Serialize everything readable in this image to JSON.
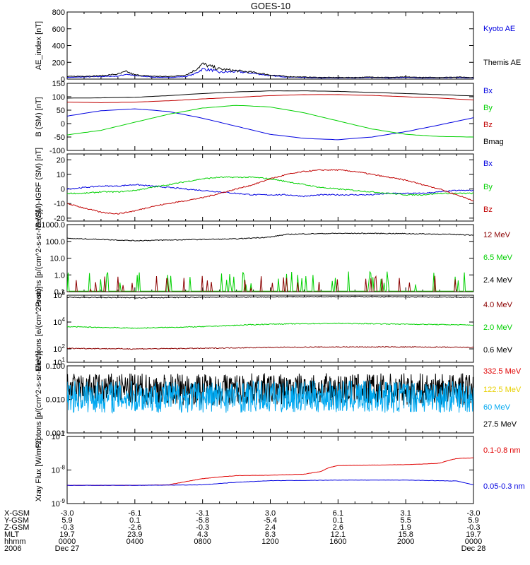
{
  "colors": {
    "black": "#000000",
    "blue": "#0000e0",
    "red": "#c00000",
    "green": "#00d000",
    "darkred": "#8b0000",
    "lightblue": "#00a8f0",
    "yellow": "#e8d000",
    "red2": "#e00000"
  },
  "chart_data": [
    {
      "type": "line",
      "title": "GOES-10",
      "ylabel": "AE_index [nT]",
      "yscale": "linear",
      "ylim": [
        0,
        800
      ],
      "ytick_labels": [
        "0",
        "200",
        "400",
        "600",
        "800"
      ],
      "legend": [
        {
          "name": "Kyoto AE",
          "color": "blue"
        },
        {
          "name": "Themis AE",
          "color": "black"
        }
      ],
      "series": [
        {
          "name": "Kyoto AE",
          "color": "blue",
          "x": [
            0,
            1,
            2,
            3,
            3.5,
            4,
            5,
            6,
            7,
            7.5,
            8,
            8.5,
            9,
            10,
            11,
            12,
            13,
            14,
            15,
            16,
            17,
            18,
            19,
            20,
            21,
            22,
            23,
            24
          ],
          "y": [
            20,
            25,
            30,
            35,
            60,
            40,
            25,
            20,
            30,
            60,
            120,
            110,
            80,
            90,
            70,
            40,
            25,
            20,
            15,
            15,
            15,
            20,
            15,
            20,
            15,
            15,
            20,
            15
          ]
        },
        {
          "name": "Themis AE",
          "color": "black",
          "x": [
            0,
            1,
            2,
            3,
            3.5,
            4,
            5,
            6,
            7,
            7.5,
            8,
            8.5,
            9,
            10,
            11,
            12,
            13,
            14,
            15,
            16,
            17,
            18,
            19,
            20,
            21,
            22,
            23,
            24
          ],
          "y": [
            30,
            35,
            40,
            60,
            90,
            50,
            35,
            30,
            50,
            100,
            180,
            150,
            120,
            100,
            80,
            50,
            30,
            25,
            20,
            20,
            20,
            25,
            20,
            25,
            20,
            20,
            25,
            20
          ]
        }
      ]
    },
    {
      "type": "line",
      "ylabel": "B (SM) [nT]",
      "yscale": "linear",
      "ylim": [
        -100,
        150
      ],
      "ytick_labels": [
        "150",
        "100",
        "50",
        "0",
        "-50",
        "-100"
      ],
      "legend": [
        {
          "name": "Bx",
          "color": "blue"
        },
        {
          "name": "By",
          "color": "green"
        },
        {
          "name": "Bz",
          "color": "red"
        },
        {
          "name": "Bmag",
          "color": "black"
        }
      ],
      "series": [
        {
          "name": "Bx",
          "color": "blue",
          "x": [
            0,
            2,
            4,
            6,
            8,
            10,
            12,
            14,
            16,
            18,
            20,
            22,
            24
          ],
          "y": [
            28,
            48,
            55,
            45,
            20,
            -10,
            -40,
            -55,
            -60,
            -50,
            -30,
            -5,
            22
          ]
        },
        {
          "name": "By",
          "color": "green",
          "x": [
            0,
            2,
            4,
            6,
            8,
            10,
            12,
            14,
            16,
            18,
            20,
            22,
            24
          ],
          "y": [
            -42,
            -25,
            5,
            35,
            58,
            68,
            62,
            40,
            10,
            -20,
            -40,
            -48,
            -50
          ]
        },
        {
          "name": "Bz",
          "color": "red",
          "x": [
            0,
            2,
            4,
            6,
            8,
            10,
            12,
            14,
            16,
            18,
            20,
            22,
            24
          ],
          "y": [
            80,
            78,
            80,
            85,
            92,
            98,
            104,
            108,
            108,
            105,
            100,
            95,
            88
          ]
        },
        {
          "name": "Bmag",
          "color": "black",
          "x": [
            0,
            2,
            4,
            6,
            8,
            10,
            12,
            14,
            16,
            18,
            20,
            22,
            24
          ],
          "y": [
            95,
            96,
            98,
            104,
            112,
            118,
            122,
            122,
            120,
            116,
            112,
            108,
            103
          ]
        }
      ]
    },
    {
      "type": "line",
      "ylabel": "B (SM)-IGRF (SM) [nT]",
      "yscale": "linear",
      "ylim": [
        -22,
        24
      ],
      "ytick_labels": [
        "20",
        "10",
        "0",
        "-10",
        "-20"
      ],
      "legend": [
        {
          "name": "Bx",
          "color": "blue"
        },
        {
          "name": "By",
          "color": "green"
        },
        {
          "name": "Bz",
          "color": "red"
        }
      ],
      "series": [
        {
          "name": "Bx",
          "color": "blue",
          "x": [
            0,
            1,
            2,
            3,
            4,
            5,
            6,
            7,
            8,
            9,
            10,
            11,
            12,
            13,
            14,
            15,
            16,
            17,
            18,
            19,
            20,
            21,
            22,
            23,
            24
          ],
          "y": [
            0,
            1,
            2,
            2,
            3,
            2,
            1,
            0,
            -1,
            -2,
            -3,
            -4,
            -4,
            -4,
            -5,
            -4,
            -4,
            -4,
            -4,
            -3,
            -3,
            -3,
            -2,
            -1,
            -1
          ]
        },
        {
          "name": "By",
          "color": "green",
          "x": [
            0,
            1,
            2,
            3,
            4,
            5,
            6,
            7,
            8,
            9,
            10,
            11,
            12,
            13,
            14,
            15,
            16,
            17,
            18,
            19,
            20,
            21,
            22,
            23,
            24
          ],
          "y": [
            -3,
            -3,
            -2,
            -2,
            -1,
            1,
            3,
            5,
            7,
            8,
            8,
            8,
            7,
            5,
            3,
            1,
            0,
            -1,
            -2,
            -3,
            -4,
            -4,
            -3,
            -3,
            -3
          ]
        },
        {
          "name": "Bz",
          "color": "red",
          "x": [
            0,
            1,
            2,
            3,
            4,
            5,
            6,
            7,
            8,
            9,
            10,
            11,
            12,
            13,
            14,
            15,
            16,
            17,
            18,
            19,
            20,
            21,
            22,
            23,
            24
          ],
          "y": [
            -10,
            -13,
            -16,
            -17,
            -15,
            -12,
            -10,
            -8,
            -6,
            -3,
            0,
            3,
            7,
            10,
            12,
            13,
            13,
            12,
            10,
            8,
            6,
            3,
            0,
            -4,
            -8
          ]
        }
      ]
    },
    {
      "type": "line",
      "ylabel": "Protons [p/(cm^2-s-sr-MeV)]",
      "yscale": "log",
      "ylim": [
        0.1,
        1000
      ],
      "ytick_labels": [
        "0.1",
        "1.0",
        "10.0",
        "100.0",
        "1000.0"
      ],
      "legend": [
        {
          "name": "12 MeV",
          "color": "darkred"
        },
        {
          "name": "6.5 MeV",
          "color": "green"
        },
        {
          "name": "2.4 MeV",
          "color": "black"
        }
      ],
      "series": [
        {
          "name": "2.4 MeV",
          "color": "black",
          "x": [
            0,
            2,
            4,
            6,
            8,
            10,
            12,
            13,
            14,
            16,
            18,
            20,
            22,
            24
          ],
          "y": [
            150,
            130,
            110,
            120,
            130,
            140,
            180,
            260,
            280,
            300,
            300,
            290,
            270,
            240
          ]
        },
        {
          "name": "6.5 MeV",
          "color": "green",
          "x": [
            0,
            24
          ],
          "y": [
            0.18,
            0.18
          ]
        },
        {
          "name": "12 MeV",
          "color": "darkred",
          "x": [
            0,
            24
          ],
          "y": [
            0.1,
            0.1
          ]
        }
      ]
    },
    {
      "type": "line",
      "ylabel": "Electrons [e/(cm^2-s-sr)]",
      "yscale": "log",
      "ylim": [
        10,
        1000000
      ],
      "ytick_labels": [
        "10^1",
        "10^2",
        "10^4",
        "10^6"
      ],
      "legend": [
        {
          "name": "4.0 MeV",
          "color": "darkred"
        },
        {
          "name": "2.0 MeV",
          "color": "green"
        },
        {
          "name": "0.6 MeV",
          "color": "black"
        }
      ],
      "series": [
        {
          "name": "0.6 MeV",
          "color": "black",
          "x": [
            0,
            4,
            8,
            12,
            16,
            20,
            24
          ],
          "y": [
            700000,
            650000,
            700000,
            750000,
            800000,
            750000,
            700000
          ]
        },
        {
          "name": "2.0 MeV",
          "color": "green",
          "x": [
            0,
            4,
            8,
            12,
            16,
            20,
            24
          ],
          "y": [
            4500,
            3500,
            4500,
            7000,
            8000,
            7000,
            6000
          ]
        },
        {
          "name": "4.0 MeV",
          "color": "darkred",
          "x": [
            0,
            4,
            8,
            12,
            16,
            20,
            24
          ],
          "y": [
            110,
            100,
            110,
            130,
            140,
            140,
            130
          ]
        }
      ]
    },
    {
      "type": "line",
      "ylabel": "Protons [p/(cm^2-s-sr-MeV)]",
      "yscale": "log",
      "ylim": [
        0.001,
        0.1
      ],
      "ytick_labels": [
        "0.001",
        "0.010",
        "0.100"
      ],
      "legend": [
        {
          "name": "332.5 MeV",
          "color": "red2"
        },
        {
          "name": "122.5 MeV",
          "color": "yellow"
        },
        {
          "name": "60 MeV",
          "color": "lightblue"
        },
        {
          "name": "27.5 MeV",
          "color": "black"
        }
      ],
      "series": [
        {
          "name": "27.5 MeV",
          "color": "black",
          "x": [
            0,
            24
          ],
          "y": [
            0.02,
            0.02
          ]
        },
        {
          "name": "60 MeV",
          "color": "lightblue",
          "x": [
            0,
            24
          ],
          "y": [
            0.012,
            0.012
          ]
        }
      ]
    },
    {
      "type": "line",
      "ylabel": "Xray Flux [W/m^2]",
      "yscale": "log",
      "ylim": [
        1e-09,
        1e-07
      ],
      "ytick_labels": [
        "10^-9",
        "10^-8",
        "10^-7"
      ],
      "legend": [
        {
          "name": "0.1-0.8 nm",
          "color": "red2"
        },
        {
          "name": "0.05-0.3 nm",
          "color": "blue"
        }
      ],
      "series": [
        {
          "name": "0.1-0.8 nm",
          "color": "red2",
          "x": [
            0,
            2,
            4,
            6,
            7,
            8,
            9,
            10,
            12,
            14,
            15,
            15.5,
            16,
            18,
            20,
            21,
            22,
            23,
            24
          ],
          "y": [
            3.5e-09,
            3.5e-09,
            3.5e-09,
            3.6e-09,
            4.5e-09,
            5.5e-09,
            6.2e-09,
            6.8e-09,
            7e-09,
            7.5e-09,
            9e-09,
            1.2e-08,
            1.35e-08,
            1.4e-08,
            1.45e-08,
            1.5e-08,
            1.6e-08,
            2.2e-08,
            2.3e-08
          ]
        },
        {
          "name": "0.05-0.3 nm",
          "color": "blue",
          "x": [
            0,
            4,
            8,
            10,
            12,
            16,
            20,
            23,
            24
          ],
          "y": [
            3.5e-09,
            3.5e-09,
            3.6e-09,
            4.3e-09,
            4.8e-09,
            5e-09,
            5e-09,
            4.7e-09,
            3.6e-09
          ]
        }
      ]
    }
  ],
  "ephemeris": {
    "rows": [
      {
        "label": "X-GSM",
        "values": [
          "-3.0",
          "-6.1",
          "-3.1",
          "3.0",
          "6.1",
          "3.1",
          "-3.0"
        ]
      },
      {
        "label": "Y-GSM",
        "values": [
          "5.9",
          "0.1",
          "-5.8",
          "-5.4",
          "0.1",
          "5.5",
          "5.9"
        ]
      },
      {
        "label": "Z-GSM",
        "values": [
          "-0.3",
          "-2.6",
          "-0.3",
          "2.4",
          "2.6",
          "1.9",
          "-0.3"
        ]
      },
      {
        "label": "MLT",
        "values": [
          "19.7",
          "23.9",
          "4.3",
          "8.3",
          "12.1",
          "15.8",
          "19.7"
        ]
      },
      {
        "label": "hhmm",
        "values": [
          "0000",
          "0400",
          "0800",
          "1200",
          "1600",
          "2000",
          "0000"
        ]
      },
      {
        "label": "2006",
        "values": [
          "Dec 27",
          "",
          "",
          "",
          "",
          "",
          "Dec 28"
        ]
      }
    ]
  }
}
